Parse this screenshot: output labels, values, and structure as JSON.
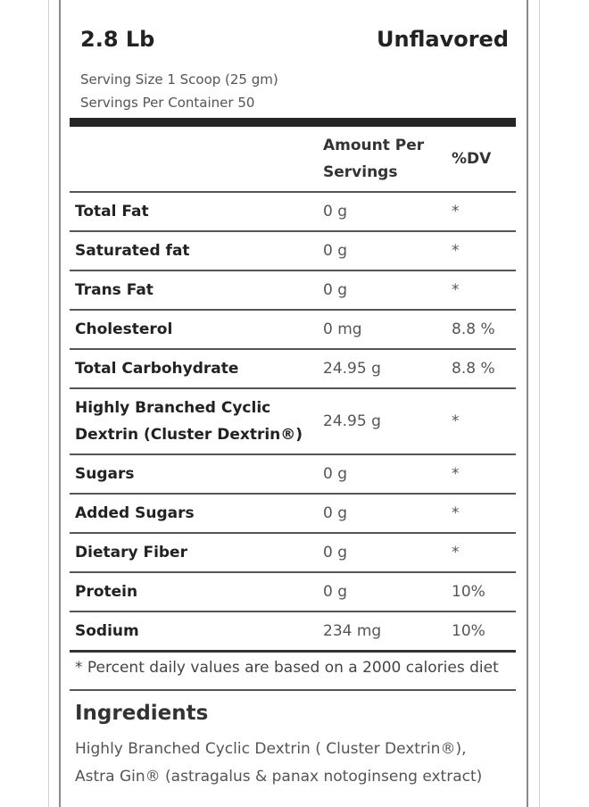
{
  "header": {
    "size": "2.8 Lb",
    "flavor": "Unflavored"
  },
  "serving": {
    "size": "Serving Size 1 Scoop (25 gm)",
    "per_container": "Servings Per Container 50"
  },
  "table": {
    "headers": {
      "nutrient": "",
      "amount_line1": "Amount Per",
      "amount_line2": "Servings",
      "dv": "%DV"
    },
    "rows": [
      {
        "nutrient": "Total Fat",
        "amount": "0 g",
        "dv": "*"
      },
      {
        "nutrient": "Saturated fat",
        "amount": "0 g",
        "dv": "*"
      },
      {
        "nutrient": "Trans Fat",
        "amount": "0 g",
        "dv": "*"
      },
      {
        "nutrient": "Cholesterol",
        "amount": "0 mg",
        "dv": "8.8 %"
      },
      {
        "nutrient": "Total Carbohydrate",
        "amount": "24.95 g",
        "dv": "8.8 %"
      },
      {
        "nutrient_line1": "Highly Branched Cyclic",
        "nutrient_line2": "Dextrin (Cluster Dextrin®)",
        "amount": "24.95 g",
        "dv": "*"
      },
      {
        "nutrient": "Sugars",
        "amount": "0 g",
        "dv": "*"
      },
      {
        "nutrient": "Added Sugars",
        "amount": "0 g",
        "dv": "*"
      },
      {
        "nutrient": "Dietary Fiber",
        "amount": "0 g",
        "dv": "*"
      },
      {
        "nutrient": "Protein",
        "amount": "0 g",
        "dv": "10%"
      },
      {
        "nutrient": "Sodium",
        "amount": "234 mg",
        "dv": "10%"
      }
    ]
  },
  "footnote": "* Percent daily values are based on a 2000 calories diet",
  "ingredients": {
    "title": "Ingredients",
    "line1": "Highly Branched Cyclic Dextrin ( Cluster Dextrin®),",
    "line2": "Astra Gin® (astragalus & panax notoginseng extract)"
  }
}
